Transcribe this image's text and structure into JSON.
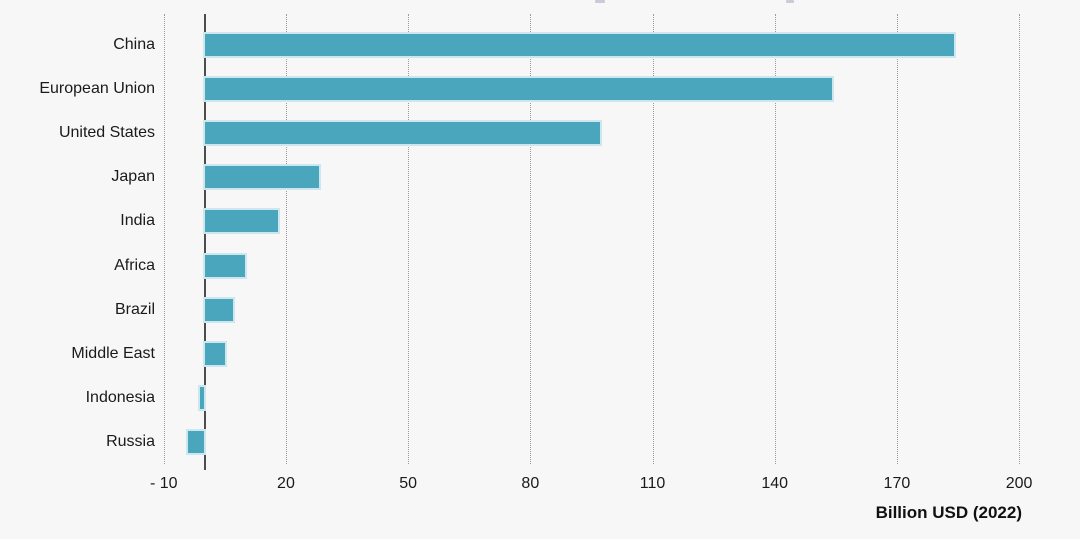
{
  "chart_data": {
    "type": "bar",
    "orientation": "horizontal",
    "title": "",
    "categories": [
      "China",
      "European Union",
      "United States",
      "Japan",
      "India",
      "Africa",
      "Brazil",
      "Middle East",
      "Indonesia",
      "Russia"
    ],
    "values": [
      184,
      154,
      97,
      28,
      18,
      10,
      7,
      5,
      -1,
      -4
    ],
    "xlabel": "Billion USD (2022)",
    "x_ticks": [
      -10,
      20,
      50,
      80,
      110,
      140,
      170,
      200
    ],
    "x_tick_labels": [
      "- 10",
      "20",
      "50",
      "80",
      "110",
      "140",
      "170",
      "200"
    ],
    "xlim": [
      -22,
      215
    ],
    "grid": "vertical-dotted",
    "legend": "none",
    "bar_color": "#4AA6BD",
    "bar_edge_color": "#CDE7EF",
    "axis_line_color": "#4d4d4d",
    "background_color": "#f7f7f8",
    "text_color": "#1a1a1a"
  }
}
